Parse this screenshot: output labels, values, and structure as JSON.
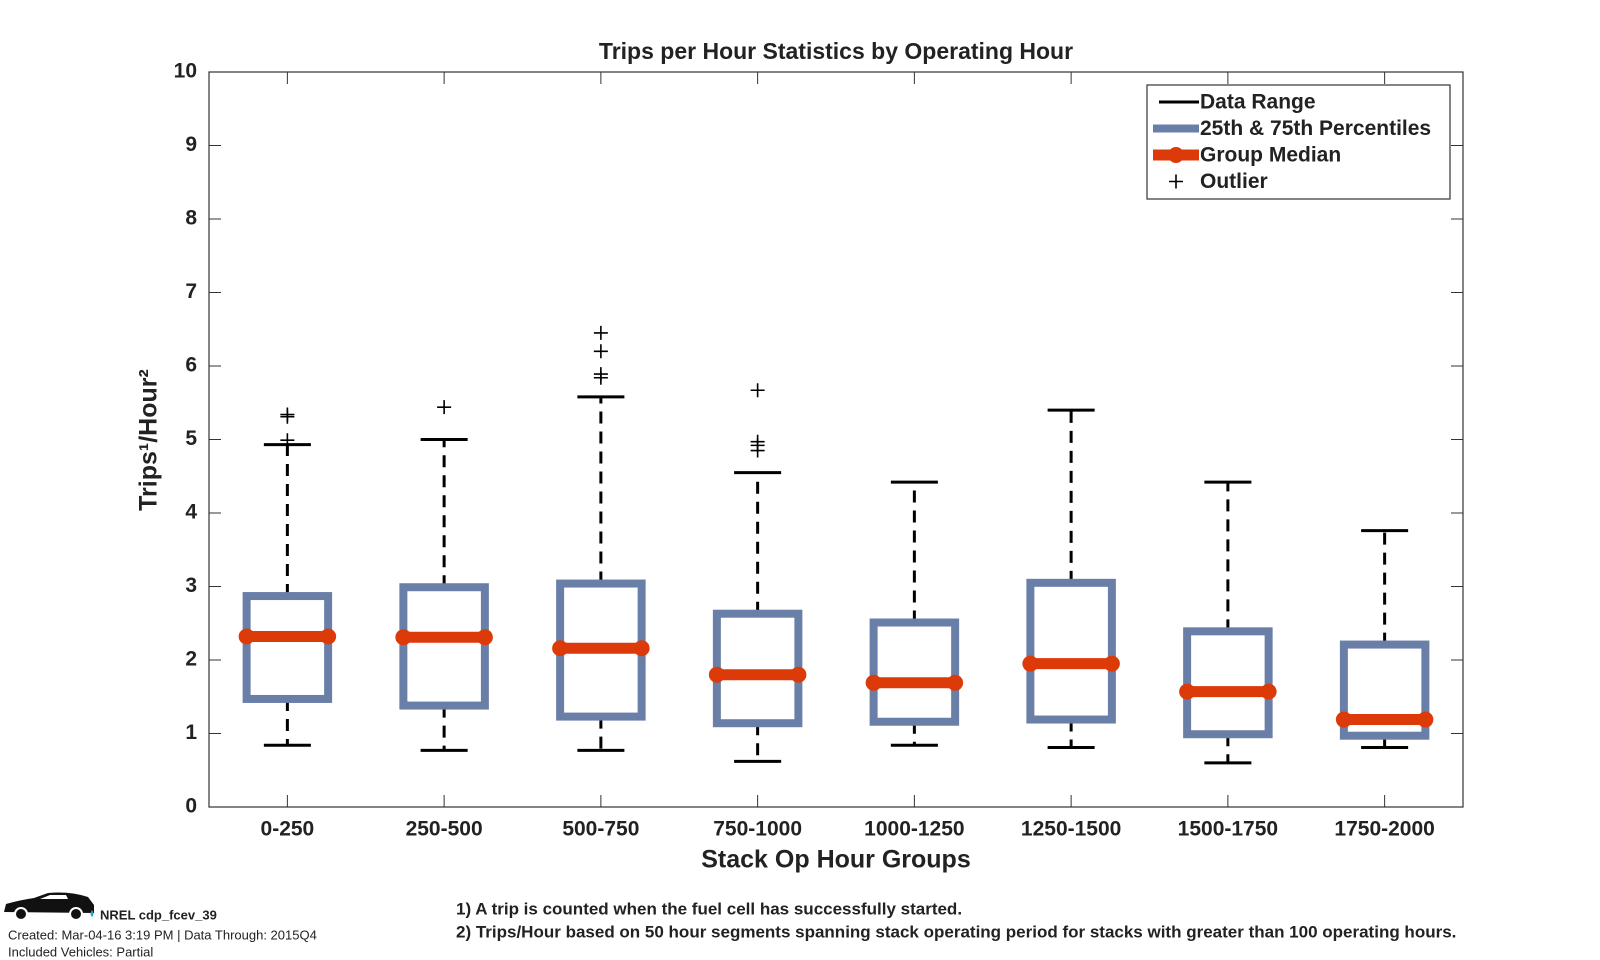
{
  "chart_data": {
    "type": "box",
    "title": "Trips per Hour Statistics by Operating Hour",
    "x_label": "Stack Op Hour Groups",
    "y_label": "Trips¹/Hour²",
    "categories": [
      "0-250",
      "250-500",
      "500-750",
      "750-1000",
      "1000-1250",
      "1250-1500",
      "1500-1750",
      "1750-2000"
    ],
    "boxes": [
      {
        "low": 0.84,
        "q1": 1.47,
        "median": 2.32,
        "q3": 2.87,
        "high": 4.93,
        "outliers": [
          4.99,
          5.31,
          5.34
        ]
      },
      {
        "low": 0.77,
        "q1": 1.38,
        "median": 2.31,
        "q3": 2.99,
        "high": 5.0,
        "outliers": [
          5.44
        ]
      },
      {
        "low": 0.77,
        "q1": 1.23,
        "median": 2.16,
        "q3": 3.04,
        "high": 5.58,
        "outliers": [
          5.84,
          5.89,
          6.2,
          6.45
        ]
      },
      {
        "low": 0.62,
        "q1": 1.14,
        "median": 1.8,
        "q3": 2.63,
        "high": 4.55,
        "outliers": [
          4.85,
          4.92,
          4.97,
          5.67
        ]
      },
      {
        "low": 0.84,
        "q1": 1.16,
        "median": 1.69,
        "q3": 2.51,
        "high": 4.42,
        "outliers": []
      },
      {
        "low": 0.81,
        "q1": 1.19,
        "median": 1.95,
        "q3": 3.05,
        "high": 5.4,
        "outliers": []
      },
      {
        "low": 0.6,
        "q1": 0.99,
        "median": 1.57,
        "q3": 2.39,
        "high": 4.42,
        "outliers": []
      },
      {
        "low": 0.81,
        "q1": 0.97,
        "median": 1.19,
        "q3": 2.21,
        "high": 3.76,
        "outliers": []
      }
    ],
    "legend": [
      {
        "name": "Data Range",
        "color": "#000000"
      },
      {
        "name": "25th & 75th Percentiles",
        "color": "#6a7fa8"
      },
      {
        "name": "Group Median",
        "color": "#dd3a0a"
      },
      {
        "name": "Outlier",
        "color": "#000000"
      }
    ],
    "legend_position": "upper right",
    "ylim": [
      0,
      10
    ],
    "yticks": [
      0,
      1,
      2,
      3,
      4,
      5,
      6,
      7,
      8,
      9,
      10
    ]
  },
  "footer": {
    "id": "NREL cdp_fcev_39",
    "created": "Created: Mar-04-16  3:19 PM | Data Through: 2015Q4",
    "vehicles": "Included Vehicles: Partial",
    "notes": [
      "1) A trip is counted when the fuel cell has successfully started.",
      "2) Trips/Hour based on 50 hour segments spanning stack operating period for stacks with greater than 100 operating hours."
    ]
  }
}
